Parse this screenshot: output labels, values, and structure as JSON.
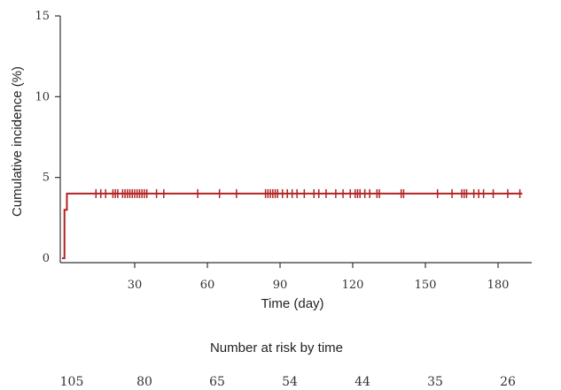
{
  "chart_data": {
    "type": "line",
    "title": "",
    "xlabel": "Time (day)",
    "ylabel": "Cumulative incidence (%)",
    "xlim": [
      0,
      192
    ],
    "ylim": [
      0,
      15
    ],
    "x_ticks": [
      30,
      60,
      90,
      120,
      150,
      180
    ],
    "x_tick_labels": [
      "30",
      "60",
      "90",
      "120",
      "150",
      "180"
    ],
    "y_ticks": [
      0,
      5,
      10,
      15
    ],
    "y_tick_labels": [
      "0",
      "5",
      "10",
      "15"
    ],
    "grid": false,
    "color": "#b22222",
    "series": [
      {
        "step_points": [
          [
            0,
            0
          ],
          [
            1,
            3.0
          ],
          [
            2,
            4.0
          ],
          [
            190,
            4.0
          ]
        ],
        "censor_times": [
          14,
          16,
          18,
          21,
          22,
          23,
          25,
          26,
          27,
          28,
          29,
          30,
          31,
          32,
          33,
          34,
          35,
          39,
          42,
          56,
          65,
          72,
          84,
          85,
          86,
          87,
          88,
          89,
          91,
          93,
          95,
          97,
          100,
          104,
          106,
          109,
          113,
          116,
          119,
          121,
          122,
          123,
          125,
          127,
          130,
          131,
          140,
          141,
          155,
          161,
          165,
          166,
          167,
          170,
          172,
          174,
          178,
          184,
          189
        ]
      }
    ],
    "risk_table": {
      "title": "Number at risk by time",
      "values": [
        "105",
        "80",
        "65",
        "54",
        "44",
        "35",
        "26"
      ]
    }
  }
}
